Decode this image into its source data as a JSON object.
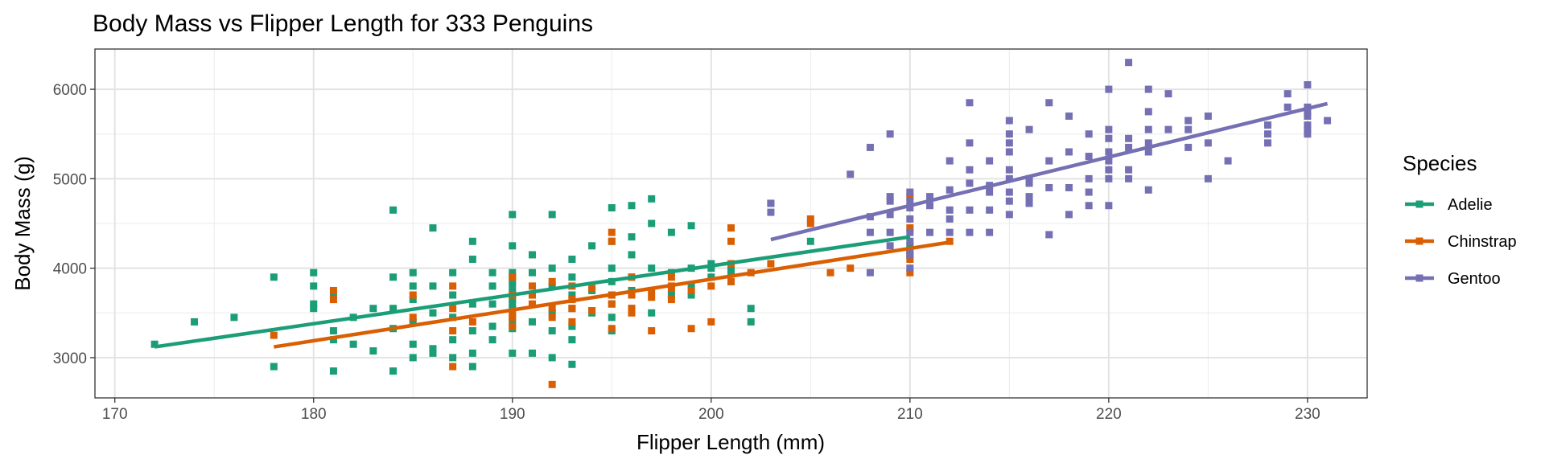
{
  "chart_data": {
    "type": "scatter",
    "title": "Body Mass vs Flipper Length for 333 Penguins",
    "xlabel": "Flipper Length (mm)",
    "ylabel": "Body Mass (g)",
    "xlim": [
      169,
      233
    ],
    "ylim": [
      2550,
      6450
    ],
    "x_ticks": [
      170,
      180,
      190,
      200,
      210,
      220,
      230
    ],
    "y_ticks": [
      3000,
      4000,
      5000,
      6000
    ],
    "grid": true,
    "legend": {
      "title": "Species",
      "position": "right"
    },
    "series": [
      {
        "name": "Adelie",
        "color": "#1b9e77",
        "points": [
          [
            172,
            3150
          ],
          [
            174,
            3400
          ],
          [
            176,
            3450
          ],
          [
            178,
            3900
          ],
          [
            178,
            2900
          ],
          [
            180,
            3950
          ],
          [
            180,
            3800
          ],
          [
            180,
            3600
          ],
          [
            180,
            3550
          ],
          [
            181,
            3300
          ],
          [
            181,
            3200
          ],
          [
            181,
            2850
          ],
          [
            181,
            3700
          ],
          [
            182,
            3450
          ],
          [
            182,
            3150
          ],
          [
            183,
            3550
          ],
          [
            183,
            3075
          ],
          [
            184,
            4650
          ],
          [
            184,
            3900
          ],
          [
            184,
            3550
          ],
          [
            184,
            3325
          ],
          [
            184,
            2850
          ],
          [
            185,
            3950
          ],
          [
            185,
            3800
          ],
          [
            185,
            3650
          ],
          [
            185,
            3400
          ],
          [
            185,
            3150
          ],
          [
            185,
            3000
          ],
          [
            186,
            4450
          ],
          [
            186,
            3800
          ],
          [
            186,
            3500
          ],
          [
            186,
            3100
          ],
          [
            186,
            3050
          ],
          [
            187,
            3950
          ],
          [
            187,
            3700
          ],
          [
            187,
            3450
          ],
          [
            187,
            3200
          ],
          [
            187,
            3000
          ],
          [
            188,
            4300
          ],
          [
            188,
            4100
          ],
          [
            188,
            3600
          ],
          [
            188,
            3300
          ],
          [
            188,
            3050
          ],
          [
            188,
            2900
          ],
          [
            189,
            3950
          ],
          [
            189,
            3800
          ],
          [
            189,
            3600
          ],
          [
            189,
            3350
          ],
          [
            189,
            3200
          ],
          [
            190,
            4600
          ],
          [
            190,
            4250
          ],
          [
            190,
            3950
          ],
          [
            190,
            3900
          ],
          [
            190,
            3850
          ],
          [
            190,
            3800
          ],
          [
            190,
            3725
          ],
          [
            190,
            3700
          ],
          [
            190,
            3650
          ],
          [
            190,
            3600
          ],
          [
            190,
            3550
          ],
          [
            190,
            3450
          ],
          [
            190,
            3400
          ],
          [
            190,
            3325
          ],
          [
            190,
            3050
          ],
          [
            191,
            4150
          ],
          [
            191,
            3950
          ],
          [
            191,
            3700
          ],
          [
            191,
            3400
          ],
          [
            191,
            3050
          ],
          [
            192,
            4600
          ],
          [
            192,
            4000
          ],
          [
            192,
            3800
          ],
          [
            192,
            3500
          ],
          [
            192,
            3300
          ],
          [
            192,
            3000
          ],
          [
            193,
            4100
          ],
          [
            193,
            3900
          ],
          [
            193,
            3700
          ],
          [
            193,
            3550
          ],
          [
            193,
            3350
          ],
          [
            193,
            3200
          ],
          [
            193,
            2925
          ],
          [
            194,
            4250
          ],
          [
            194,
            3750
          ],
          [
            194,
            3500
          ],
          [
            195,
            4675
          ],
          [
            195,
            4300
          ],
          [
            195,
            4000
          ],
          [
            195,
            3850
          ],
          [
            195,
            3700
          ],
          [
            195,
            3600
          ],
          [
            195,
            3450
          ],
          [
            195,
            3300
          ],
          [
            196,
            4700
          ],
          [
            196,
            4350
          ],
          [
            196,
            4150
          ],
          [
            196,
            3900
          ],
          [
            196,
            3750
          ],
          [
            196,
            3550
          ],
          [
            197,
            4775
          ],
          [
            197,
            4500
          ],
          [
            197,
            4000
          ],
          [
            197,
            3500
          ],
          [
            198,
            4400
          ],
          [
            198,
            3950
          ],
          [
            198,
            3700
          ],
          [
            199,
            4475
          ],
          [
            199,
            4000
          ],
          [
            199,
            3800
          ],
          [
            199,
            3700
          ],
          [
            200,
            4050
          ],
          [
            200,
            4000
          ],
          [
            200,
            3900
          ],
          [
            201,
            4000
          ],
          [
            201,
            3950
          ],
          [
            201,
            3850
          ],
          [
            202,
            3550
          ],
          [
            202,
            3400
          ],
          [
            203,
            4725
          ],
          [
            205,
            4300
          ],
          [
            210,
            4250
          ],
          [
            210,
            4150
          ]
        ],
        "fit": {
          "x": [
            172,
            210
          ],
          "y": [
            3120,
            4350
          ]
        }
      },
      {
        "name": "Chinstrap",
        "color": "#d95f02",
        "points": [
          [
            178,
            3250
          ],
          [
            181,
            3750
          ],
          [
            181,
            3650
          ],
          [
            185,
            3700
          ],
          [
            185,
            3450
          ],
          [
            187,
            3800
          ],
          [
            187,
            3550
          ],
          [
            187,
            3300
          ],
          [
            187,
            2900
          ],
          [
            188,
            3400
          ],
          [
            190,
            3900
          ],
          [
            190,
            3700
          ],
          [
            190,
            3500
          ],
          [
            190,
            3450
          ],
          [
            190,
            3350
          ],
          [
            191,
            3800
          ],
          [
            191,
            3700
          ],
          [
            191,
            3600
          ],
          [
            192,
            3850
          ],
          [
            192,
            3550
          ],
          [
            192,
            3450
          ],
          [
            192,
            2700
          ],
          [
            193,
            3800
          ],
          [
            193,
            3650
          ],
          [
            193,
            3550
          ],
          [
            193,
            3400
          ],
          [
            194,
            3775
          ],
          [
            194,
            3525
          ],
          [
            195,
            4400
          ],
          [
            195,
            4300
          ],
          [
            195,
            3700
          ],
          [
            195,
            3600
          ],
          [
            195,
            3325
          ],
          [
            196,
            3900
          ],
          [
            196,
            3700
          ],
          [
            196,
            3500
          ],
          [
            196,
            3550
          ],
          [
            197,
            3750
          ],
          [
            197,
            3675
          ],
          [
            197,
            3300
          ],
          [
            198,
            3900
          ],
          [
            198,
            3800
          ],
          [
            198,
            3775
          ],
          [
            198,
            3650
          ],
          [
            199,
            3750
          ],
          [
            199,
            3325
          ],
          [
            200,
            3800
          ],
          [
            200,
            3400
          ],
          [
            201,
            4450
          ],
          [
            201,
            4300
          ],
          [
            201,
            4050
          ],
          [
            201,
            3850
          ],
          [
            202,
            3950
          ],
          [
            203,
            4050
          ],
          [
            205,
            4550
          ],
          [
            205,
            4500
          ],
          [
            206,
            3950
          ],
          [
            207,
            4000
          ],
          [
            210,
            4800
          ],
          [
            210,
            4450
          ],
          [
            210,
            4150
          ],
          [
            210,
            4100
          ],
          [
            210,
            3950
          ],
          [
            212,
            4300
          ]
        ],
        "fit": {
          "x": [
            178,
            212
          ],
          "y": [
            3120,
            4290
          ]
        }
      },
      {
        "name": "Gentoo",
        "color": "#7570b3",
        "points": [
          [
            203,
            4725
          ],
          [
            203,
            4625
          ],
          [
            207,
            5050
          ],
          [
            208,
            5350
          ],
          [
            208,
            4575
          ],
          [
            208,
            4400
          ],
          [
            208,
            3950
          ],
          [
            209,
            5500
          ],
          [
            209,
            4800
          ],
          [
            209,
            4750
          ],
          [
            209,
            4600
          ],
          [
            209,
            4400
          ],
          [
            209,
            4250
          ],
          [
            210,
            4850
          ],
          [
            210,
            4750
          ],
          [
            210,
            4675
          ],
          [
            210,
            4550
          ],
          [
            210,
            4400
          ],
          [
            210,
            4300
          ],
          [
            210,
            4200
          ],
          [
            210,
            4150
          ],
          [
            210,
            4000
          ],
          [
            211,
            4800
          ],
          [
            211,
            4700
          ],
          [
            211,
            4400
          ],
          [
            212,
            5200
          ],
          [
            212,
            4875
          ],
          [
            212,
            4650
          ],
          [
            212,
            4550
          ],
          [
            212,
            4400
          ],
          [
            213,
            5850
          ],
          [
            213,
            5400
          ],
          [
            213,
            5100
          ],
          [
            213,
            4950
          ],
          [
            213,
            4650
          ],
          [
            213,
            4400
          ],
          [
            214,
            5200
          ],
          [
            214,
            4925
          ],
          [
            214,
            4850
          ],
          [
            214,
            4650
          ],
          [
            214,
            4400
          ],
          [
            215,
            5650
          ],
          [
            215,
            5500
          ],
          [
            215,
            5400
          ],
          [
            215,
            5300
          ],
          [
            215,
            5100
          ],
          [
            215,
            5000
          ],
          [
            215,
            4850
          ],
          [
            215,
            4750
          ],
          [
            215,
            4600
          ],
          [
            216,
            5550
          ],
          [
            216,
            5000
          ],
          [
            216,
            4950
          ],
          [
            216,
            4800
          ],
          [
            216,
            4725
          ],
          [
            217,
            5850
          ],
          [
            217,
            5200
          ],
          [
            217,
            4900
          ],
          [
            217,
            4375
          ],
          [
            218,
            5700
          ],
          [
            218,
            5300
          ],
          [
            218,
            4900
          ],
          [
            218,
            4600
          ],
          [
            219,
            5500
          ],
          [
            219,
            5250
          ],
          [
            219,
            5000
          ],
          [
            219,
            4850
          ],
          [
            219,
            4700
          ],
          [
            220,
            6000
          ],
          [
            220,
            5550
          ],
          [
            220,
            5450
          ],
          [
            220,
            5300
          ],
          [
            220,
            5200
          ],
          [
            220,
            5100
          ],
          [
            220,
            5000
          ],
          [
            220,
            4700
          ],
          [
            221,
            6300
          ],
          [
            221,
            5450
          ],
          [
            221,
            5350
          ],
          [
            221,
            5100
          ],
          [
            221,
            5000
          ],
          [
            222,
            6000
          ],
          [
            222,
            5750
          ],
          [
            222,
            5550
          ],
          [
            222,
            5400
          ],
          [
            222,
            5300
          ],
          [
            222,
            4875
          ],
          [
            223,
            5950
          ],
          [
            223,
            5550
          ],
          [
            224,
            5650
          ],
          [
            224,
            5550
          ],
          [
            224,
            5350
          ],
          [
            225,
            5700
          ],
          [
            225,
            5400
          ],
          [
            225,
            5000
          ],
          [
            226,
            5200
          ],
          [
            228,
            5600
          ],
          [
            228,
            5500
          ],
          [
            228,
            5400
          ],
          [
            229,
            5950
          ],
          [
            229,
            5800
          ],
          [
            230,
            6050
          ],
          [
            230,
            5800
          ],
          [
            230,
            5750
          ],
          [
            230,
            5700
          ],
          [
            230,
            5600
          ],
          [
            230,
            5550
          ],
          [
            230,
            5500
          ],
          [
            231,
            5650
          ]
        ],
        "fit": {
          "x": [
            203,
            231
          ],
          "y": [
            4320,
            5840
          ]
        }
      }
    ]
  }
}
